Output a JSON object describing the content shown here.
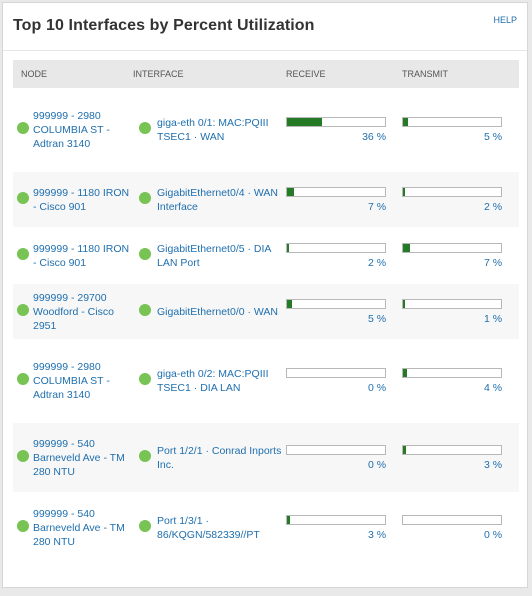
{
  "widget": {
    "title": "Top 10 Interfaces by Percent Utilization",
    "help": "HELP"
  },
  "columns": {
    "node": "NODE",
    "interface": "INTERFACE",
    "receive": "RECEIVE",
    "transmit": "TRANSMIT"
  },
  "colors": {
    "status_up": "#77c353",
    "bar_fill": "#257b25",
    "link": "#1f6fae"
  },
  "rows": [
    {
      "node": "999999 - 2980 COLUMBIA ST - Adtran 3140",
      "interface": "giga-eth 0/1: MAC:PQIII TSEC1 · WAN",
      "receive_label": "36 %",
      "receive_value": 36,
      "transmit_label": "5 %",
      "transmit_value": 5
    },
    {
      "node": "999999 - 1180 IRON - Cisco 901",
      "interface": "GigabitEthernet0/4 · WAN Interface",
      "receive_label": "7 %",
      "receive_value": 7,
      "transmit_label": "2 %",
      "transmit_value": 2
    },
    {
      "node": "999999 - 1180 IRON - Cisco 901",
      "interface": "GigabitEthernet0/5 · DIA LAN Port",
      "receive_label": "2 %",
      "receive_value": 2,
      "transmit_label": "7 %",
      "transmit_value": 7
    },
    {
      "node": "999999 - 29700 Woodford - Cisco 2951",
      "interface": "GigabitEthernet0/0 · WAN",
      "receive_label": "5 %",
      "receive_value": 5,
      "transmit_label": "1 %",
      "transmit_value": 1
    },
    {
      "node": "999999 - 2980 COLUMBIA ST - Adtran 3140",
      "interface": "giga-eth 0/2: MAC:PQIII TSEC1 · DIA LAN",
      "receive_label": "0 %",
      "receive_value": 0,
      "transmit_label": "4 %",
      "transmit_value": 4
    },
    {
      "node": "999999 - 540 Barneveld Ave - TM 280 NTU",
      "interface": "Port 1/2/1 · Conrad Inports Inc.",
      "receive_label": "0 %",
      "receive_value": 0,
      "transmit_label": "3 %",
      "transmit_value": 3
    },
    {
      "node": "999999 - 540 Barneveld Ave - TM 280 NTU",
      "interface": "Port 1/3/1 · 86/KQGN/582339//PT",
      "receive_label": "3 %",
      "receive_value": 3,
      "transmit_label": "0 %",
      "transmit_value": 0
    }
  ]
}
